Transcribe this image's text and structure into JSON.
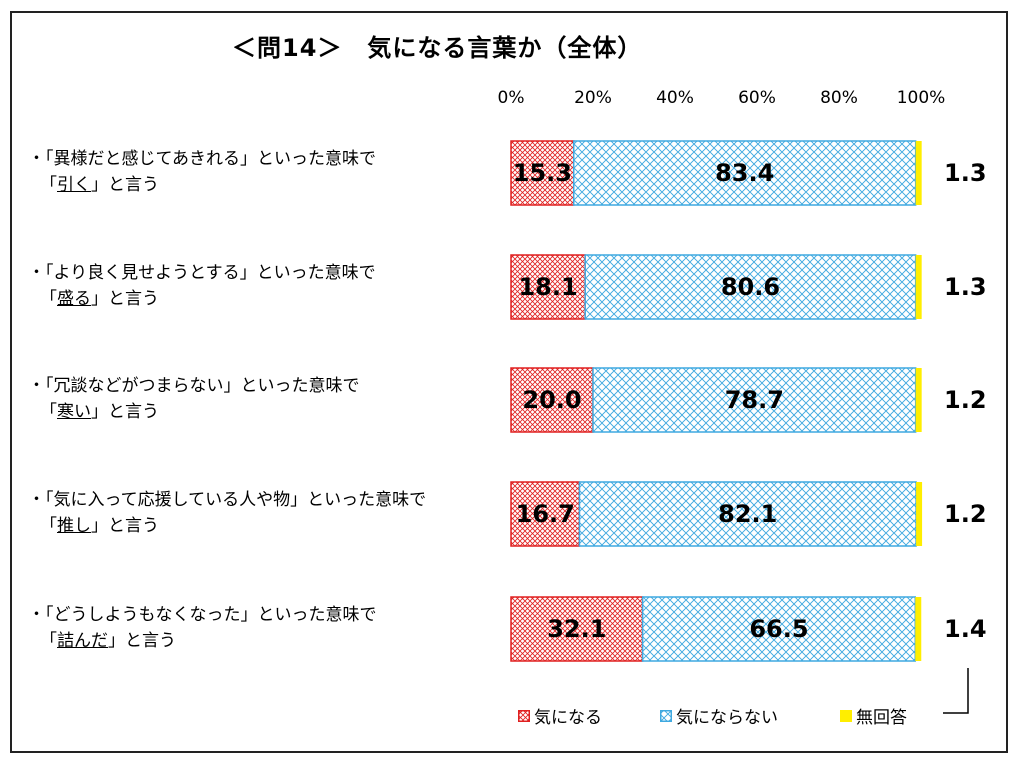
{
  "title": "＜問14＞　気になる言葉か（全体）",
  "legend": {
    "a": "気になる",
    "b": "気にならない",
    "c": "無回答"
  },
  "colors": {
    "a_line": "#e02020",
    "b_line": "#3fa9e0",
    "c_fill": "#ffee00"
  },
  "chart_data": {
    "type": "bar",
    "orientation": "horizontal",
    "stacked": "100%",
    "x_ticks": [
      "0%",
      "20%",
      "40%",
      "60%",
      "80%",
      "100%"
    ],
    "xlim": [
      0,
      100
    ],
    "categories": [
      {
        "line1": "・「異様だと感じてあきれる」といった意味で",
        "pre": "「",
        "word": "引く",
        "post": "」と言う"
      },
      {
        "line1": "・「より良く見せようとする」といった意味で",
        "pre": "「",
        "word": "盛る",
        "post": "」と言う"
      },
      {
        "line1": "・「冗談などがつまらない」といった意味で",
        "pre": "「",
        "word": "寒い",
        "post": "」と言う"
      },
      {
        "line1": "・「気に入って応援している人や物」といった意味で",
        "pre": "「",
        "word": "推し",
        "post": "」と言う"
      },
      {
        "line1": "・「どうしようもなくなった」といった意味で",
        "pre": "「",
        "word": "詰んだ",
        "post": "」と言う"
      }
    ],
    "series": [
      {
        "name": "気になる",
        "values": [
          15.3,
          18.1,
          20.0,
          16.7,
          32.1
        ],
        "labels": [
          "15.3",
          "18.1",
          "20.0",
          "16.7",
          "32.1"
        ]
      },
      {
        "name": "気にならない",
        "values": [
          83.4,
          80.6,
          78.7,
          82.1,
          66.5
        ],
        "labels": [
          "83.4",
          "80.6",
          "78.7",
          "82.1",
          "66.5"
        ]
      },
      {
        "name": "無回答",
        "values": [
          1.3,
          1.3,
          1.2,
          1.2,
          1.4
        ],
        "labels": [
          "1.3",
          "1.3",
          "1.2",
          "1.2",
          "1.4"
        ]
      }
    ]
  }
}
